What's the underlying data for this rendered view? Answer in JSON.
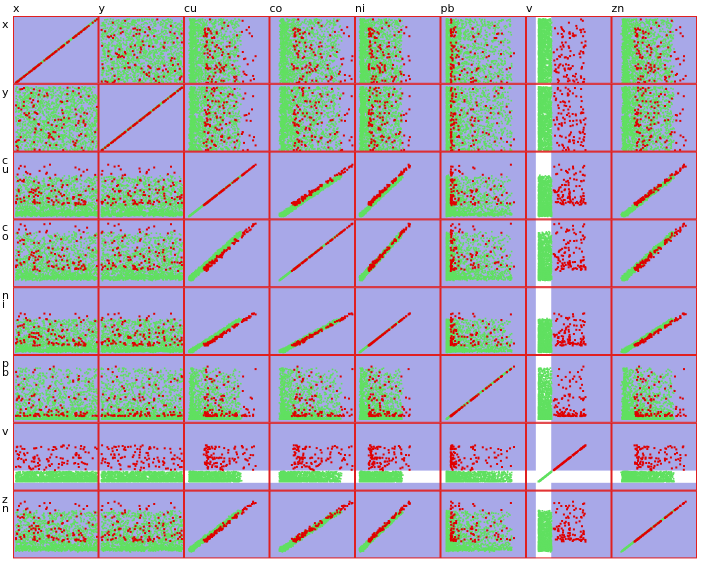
{
  "variables": [
    "x",
    "y",
    "cu",
    "co",
    "ni",
    "pb",
    "v",
    "zn"
  ],
  "colors": {
    "background": "#a8a8e8",
    "frame": "#e02020",
    "subset_highlight": "#e00000",
    "subset_rest": "#60e060",
    "excluded_band": "#ffffff"
  },
  "chart_data": {
    "type": "scatter",
    "subtype": "scatterplot matrix with linked brushing",
    "variables": [
      "x",
      "y",
      "cu",
      "co",
      "ni",
      "pb",
      "v",
      "zn"
    ],
    "diagonal": "identity scatter of each variable against itself",
    "series": [
      {
        "color": "#e00000",
        "point_count_estimate": 100
      },
      {
        "color": "#60e060",
        "point_count_estimate": 1500
      }
    ],
    "excluded_range": {
      "variable": "v",
      "position": "low-middle band of v range, shown as white gap"
    },
    "grid": false,
    "legend": "none"
  }
}
